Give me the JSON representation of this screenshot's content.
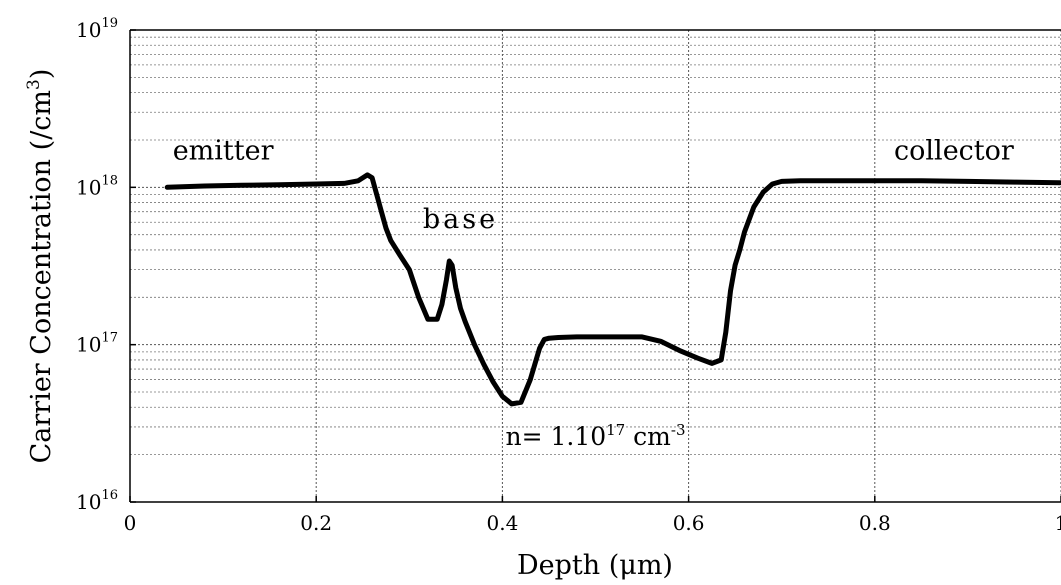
{
  "chart_data": {
    "type": "line",
    "title": "",
    "xlabel": "Depth (μm)",
    "ylabel": "Carrier Concentration (/cm³)",
    "ylabel_base": "Carrier Concentration (/cm",
    "ylabel_sup": "3",
    "ylabel_tail": ")",
    "xlim": [
      0,
      1
    ],
    "ylim": [
      1e+16,
      1e+19
    ],
    "yscale": "log",
    "grid": true,
    "x_ticks": [
      {
        "value": 0,
        "label": "0"
      },
      {
        "value": 0.2,
        "label": "0.2"
      },
      {
        "value": 0.4,
        "label": "0.4"
      },
      {
        "value": 0.6,
        "label": "0.6"
      },
      {
        "value": 0.8,
        "label": "0.8"
      },
      {
        "value": 1,
        "label": "1"
      }
    ],
    "y_ticks": [
      {
        "value": 1e+16,
        "base": "10",
        "exp": "16"
      },
      {
        "value": 1e+17,
        "base": "10",
        "exp": "17"
      },
      {
        "value": 1e+18,
        "base": "10",
        "exp": "18"
      },
      {
        "value": 1e+19,
        "base": "10",
        "exp": "19"
      }
    ],
    "annotations": [
      {
        "id": "emitter",
        "text": "emitter",
        "x": 0.1,
        "y": 1.5e+18
      },
      {
        "id": "base",
        "text": "base",
        "x": 0.355,
        "y": 5.5e+17
      },
      {
        "id": "collector",
        "text": "collector",
        "x": 0.885,
        "y": 1.5e+18
      }
    ],
    "density_annotation": {
      "x": 0.5,
      "y": 2.3e+16,
      "prefix": "n= 1.10",
      "sup1": "17",
      "middle": " cm",
      "sup2": "-3"
    },
    "series": [
      {
        "x": [
          0.04,
          0.08,
          0.12,
          0.16,
          0.2,
          0.23,
          0.245,
          0.25,
          0.255,
          0.26,
          0.265,
          0.27,
          0.275,
          0.28,
          0.29,
          0.3,
          0.31,
          0.32,
          0.33,
          0.335,
          0.34,
          0.343,
          0.346,
          0.35,
          0.355,
          0.36,
          0.37,
          0.38,
          0.39,
          0.4,
          0.41,
          0.42,
          0.43,
          0.44,
          0.445,
          0.45,
          0.46,
          0.48,
          0.5,
          0.52,
          0.55,
          0.57,
          0.59,
          0.61,
          0.625,
          0.635,
          0.64,
          0.645,
          0.65,
          0.655,
          0.66,
          0.67,
          0.68,
          0.69,
          0.7,
          0.72,
          0.75,
          0.8,
          0.85,
          0.9,
          0.95,
          1.0
        ],
        "y": [
          1e+18,
          1.02e+18,
          1.03e+18,
          1.04e+18,
          1.05e+18,
          1.06e+18,
          1.1e+18,
          1.15e+18,
          1.2e+18,
          1.15e+18,
          9e+17,
          7e+17,
          5.5e+17,
          4.6e+17,
          3.7e+17,
          3e+17,
          2e+17,
          1.45e+17,
          1.45e+17,
          1.8e+17,
          2.6e+17,
          3.4e+17,
          3.2e+17,
          2.3e+17,
          1.7e+17,
          1.4e+17,
          1e+17,
          7.5e+16,
          5.8e+16,
          4.7e+16,
          4.2e+16,
          4.3e+16,
          6e+16,
          9.5e+16,
          1.08e+17,
          1.1e+17,
          1.11e+17,
          1.12e+17,
          1.12e+17,
          1.12e+17,
          1.12e+17,
          1.05e+17,
          9.2e+16,
          8.2e+16,
          7.6e+16,
          8e+16,
          1.2e+17,
          2.2e+17,
          3.2e+17,
          4e+17,
          5.2e+17,
          7.5e+17,
          9.3e+17,
          1.05e+18,
          1.09e+18,
          1.1e+18,
          1.1e+18,
          1.1e+18,
          1.1e+18,
          1.09e+18,
          1.08e+18,
          1.07e+18
        ]
      }
    ]
  }
}
